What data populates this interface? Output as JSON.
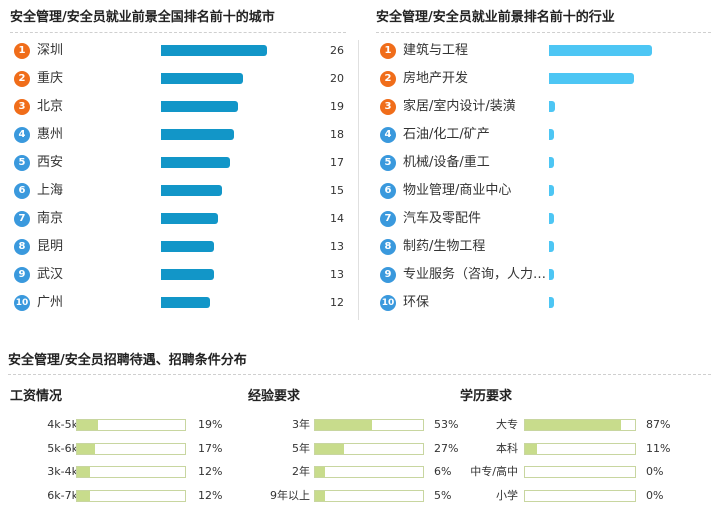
{
  "cities": {
    "title": "安全管理/安全员就业前景全国排名前十的城市",
    "max": 26,
    "items": [
      {
        "rank": "1",
        "name": "深圳",
        "count": "26",
        "value": 26
      },
      {
        "rank": "2",
        "name": "重庆",
        "count": "20",
        "value": 20
      },
      {
        "rank": "3",
        "name": "北京",
        "count": "19",
        "value": 19
      },
      {
        "rank": "4",
        "name": "惠州",
        "count": "18",
        "value": 18
      },
      {
        "rank": "5",
        "name": "西安",
        "count": "17",
        "value": 17
      },
      {
        "rank": "6",
        "name": "上海",
        "count": "15",
        "value": 15
      },
      {
        "rank": "7",
        "name": "南京",
        "count": "14",
        "value": 14
      },
      {
        "rank": "8",
        "name": "昆明",
        "count": "13",
        "value": 13
      },
      {
        "rank": "9",
        "name": "武汉",
        "count": "13",
        "value": 13
      },
      {
        "rank": "10",
        "name": "广州",
        "count": "12",
        "value": 12
      }
    ]
  },
  "industries": {
    "title": "安全管理/安全员就业前景排名前十的行业",
    "max": 100,
    "items": [
      {
        "rank": "1",
        "name": "建筑与工程",
        "value": 100
      },
      {
        "rank": "2",
        "name": "房地产开发",
        "value": 83
      },
      {
        "rank": "3",
        "name": "家居/室内设计/装潢",
        "value": 6
      },
      {
        "rank": "4",
        "name": "石油/化工/矿产",
        "value": 5
      },
      {
        "rank": "5",
        "name": "机械/设备/重工",
        "value": 5
      },
      {
        "rank": "6",
        "name": "物业管理/商业中心",
        "value": 3
      },
      {
        "rank": "7",
        "name": "汽车及零配件",
        "value": 3
      },
      {
        "rank": "8",
        "name": "制药/生物工程",
        "value": 3
      },
      {
        "rank": "9",
        "name": "专业服务（咨询，人力…",
        "value": 3
      },
      {
        "rank": "10",
        "name": "环保",
        "value": 3
      }
    ]
  },
  "section2": {
    "title": "安全管理/安全员招聘待遇、招聘条件分布",
    "groups": [
      {
        "title": "工资情况",
        "items": [
          {
            "label": "4k-5k",
            "pct": "19%",
            "value": 19
          },
          {
            "label": "5k-6k",
            "pct": "17%",
            "value": 17
          },
          {
            "label": "3k-4k",
            "pct": "12%",
            "value": 12
          },
          {
            "label": "6k-7k",
            "pct": "12%",
            "value": 12
          }
        ]
      },
      {
        "title": "经验要求",
        "items": [
          {
            "label": "3年",
            "pct": "53%",
            "value": 53
          },
          {
            "label": "5年",
            "pct": "27%",
            "value": 27
          },
          {
            "label": "2年",
            "pct": "6%",
            "value": 6
          },
          {
            "label": "9年以上",
            "pct": "5%",
            "value": 5
          }
        ]
      },
      {
        "title": "学历要求",
        "items": [
          {
            "label": "大专",
            "pct": "87%",
            "value": 87
          },
          {
            "label": "本科",
            "pct": "11%",
            "value": 11
          },
          {
            "label": "中专/高中",
            "pct": "0%",
            "value": 0
          },
          {
            "label": "小学",
            "pct": "0%",
            "value": 0
          }
        ]
      }
    ]
  },
  "colors": {
    "rank_top": "#f06d1a",
    "rank_rest": "#3a99dd",
    "city_bar": "#1296c8",
    "industry_bar": "#4dc6f4",
    "dist_fill": "#c8dc8c"
  }
}
